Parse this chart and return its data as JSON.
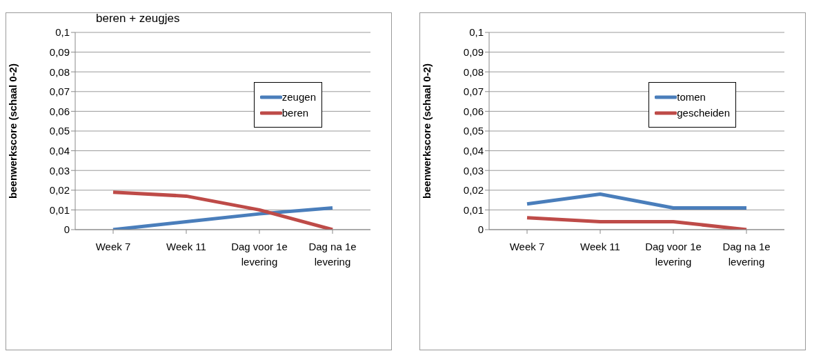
{
  "chart_data": [
    {
      "type": "line",
      "title": "beren + zeugjes",
      "ylabel": "beenwerkscore (schaal 0-2)",
      "categories": [
        "Week 7",
        "Week 11",
        "Dag voor 1e levering",
        "Dag na 1e levering"
      ],
      "series": [
        {
          "name": "zeugen",
          "color": "#4a7ebb",
          "values": [
            0,
            0.004,
            0.008,
            0.011
          ]
        },
        {
          "name": "beren",
          "color": "#be4b48",
          "values": [
            0.019,
            0.017,
            0.01,
            0
          ]
        }
      ],
      "ylim": [
        0,
        0.1
      ],
      "yticks": [
        {
          "value": 0,
          "label": "0"
        },
        {
          "value": 0.01,
          "label": "0,01"
        },
        {
          "value": 0.02,
          "label": "0,02"
        },
        {
          "value": 0.03,
          "label": "0,03"
        },
        {
          "value": 0.04,
          "label": "0,04"
        },
        {
          "value": 0.05,
          "label": "0,05"
        },
        {
          "value": 0.06,
          "label": "0,06"
        },
        {
          "value": 0.07,
          "label": "0,07"
        },
        {
          "value": 0.08,
          "label": "0,08"
        },
        {
          "value": 0.09,
          "label": "0,09"
        },
        {
          "value": 0.1,
          "label": "0,1"
        }
      ],
      "grid": "y",
      "legend": "top right",
      "marker": "none"
    },
    {
      "type": "line",
      "ylabel": "beenwerkscore (schaal 0-2)",
      "categories": [
        "Week 7",
        "Week 11",
        "Dag voor 1e levering",
        "Dag na 1e levering"
      ],
      "series": [
        {
          "name": "tomen",
          "color": "#4a7ebb",
          "values": [
            0.013,
            0.018,
            0.011,
            0.011
          ]
        },
        {
          "name": "gescheiden",
          "color": "#be4b48",
          "values": [
            0.006,
            0.004,
            0.004,
            0
          ]
        }
      ],
      "ylim": [
        0,
        0.1
      ],
      "yticks": [
        {
          "value": 0,
          "label": "0"
        },
        {
          "value": 0.01,
          "label": "0,01"
        },
        {
          "value": 0.02,
          "label": "0,02"
        },
        {
          "value": 0.03,
          "label": "0,03"
        },
        {
          "value": 0.04,
          "label": "0,04"
        },
        {
          "value": 0.05,
          "label": "0,05"
        },
        {
          "value": 0.06,
          "label": "0,06"
        },
        {
          "value": 0.07,
          "label": "0,07"
        },
        {
          "value": 0.08,
          "label": "0,08"
        },
        {
          "value": 0.09,
          "label": "0,09"
        },
        {
          "value": 0.1,
          "label": "0,1"
        }
      ],
      "grid": "y",
      "legend": "top right",
      "marker": "none"
    }
  ]
}
